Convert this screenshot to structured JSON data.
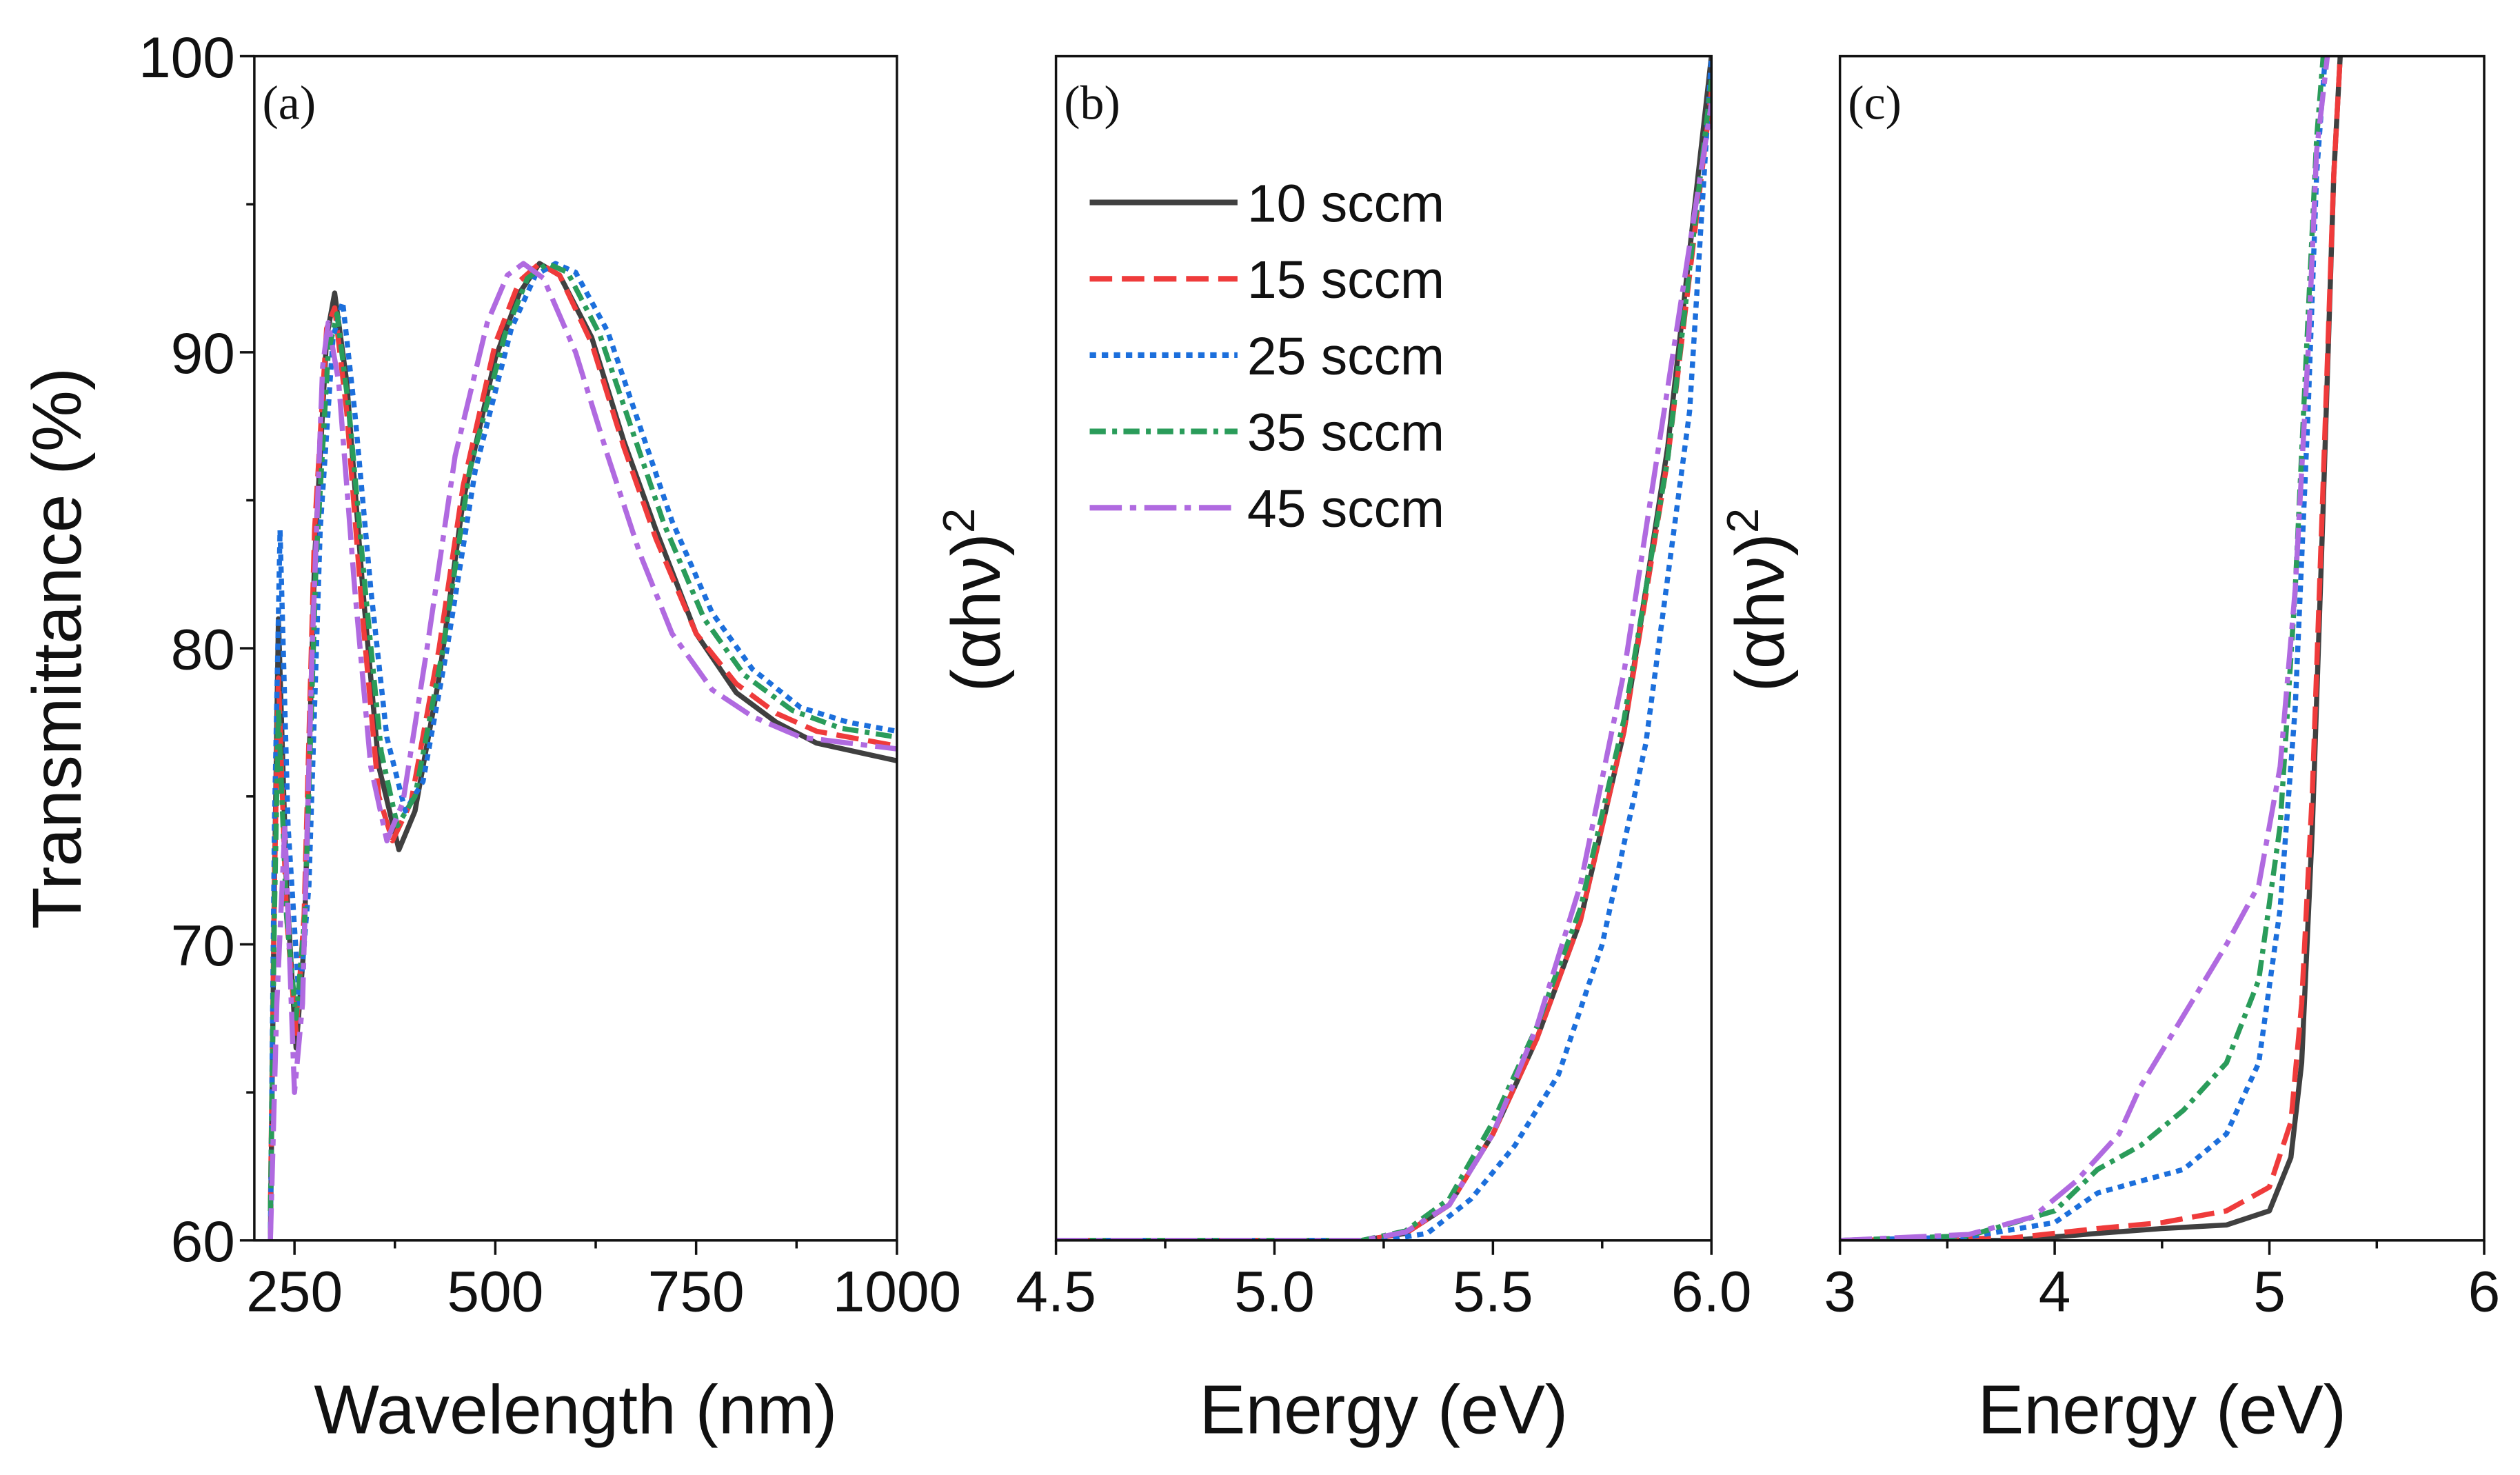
{
  "chart_data": [
    {
      "type": "line",
      "panel_label": "(a)",
      "xlabel": "Wavelength (nm)",
      "ylabel": "Transmittance (%)",
      "xlim": [
        200,
        1000
      ],
      "ylim": [
        60,
        100
      ],
      "xticks": [
        250,
        500,
        750,
        1000
      ],
      "yticks": [
        60,
        70,
        80,
        90,
        100
      ],
      "grid": false,
      "series": [
        {
          "name": "10 sccm",
          "points": [
            [
              220,
              60
            ],
            [
              225,
              72
            ],
            [
              230,
              81
            ],
            [
              240,
              72
            ],
            [
              252,
              66.5
            ],
            [
              262,
              70
            ],
            [
              275,
              83
            ],
            [
              290,
              90.5
            ],
            [
              300,
              92
            ],
            [
              315,
              89
            ],
            [
              335,
              82
            ],
            [
              355,
              76
            ],
            [
              380,
              73.2
            ],
            [
              400,
              74.5
            ],
            [
              430,
              79
            ],
            [
              460,
              85
            ],
            [
              500,
              89.8
            ],
            [
              530,
              92
            ],
            [
              555,
              93
            ],
            [
              580,
              92.6
            ],
            [
              620,
              90.5
            ],
            [
              660,
              87
            ],
            [
              700,
              84
            ],
            [
              750,
              80.5
            ],
            [
              800,
              78.5
            ],
            [
              850,
              77.5
            ],
            [
              900,
              76.8
            ],
            [
              1000,
              76.2
            ]
          ]
        },
        {
          "name": "15 sccm",
          "points": [
            [
              220,
              61
            ],
            [
              225,
              72
            ],
            [
              230,
              79
            ],
            [
              240,
              71
            ],
            [
              252,
              67
            ],
            [
              262,
              71
            ],
            [
              275,
              84
            ],
            [
              290,
              90.8
            ],
            [
              300,
              91.5
            ],
            [
              315,
              88
            ],
            [
              335,
              81
            ],
            [
              355,
              75
            ],
            [
              372,
              73.5
            ],
            [
              395,
              74.8
            ],
            [
              430,
              80
            ],
            [
              460,
              85.5
            ],
            [
              500,
              90.3
            ],
            [
              530,
              92.4
            ],
            [
              555,
              93
            ],
            [
              580,
              92.6
            ],
            [
              620,
              90.3
            ],
            [
              660,
              86.8
            ],
            [
              700,
              83.7
            ],
            [
              750,
              80.5
            ],
            [
              800,
              78.8
            ],
            [
              850,
              77.8
            ],
            [
              900,
              77.2
            ],
            [
              1000,
              76.7
            ]
          ]
        },
        {
          "name": "25 sccm",
          "points": [
            [
              220,
              60
            ],
            [
              225,
              74
            ],
            [
              232,
              84
            ],
            [
              242,
              74
            ],
            [
              256,
              68
            ],
            [
              268,
              72
            ],
            [
              282,
              84
            ],
            [
              298,
              90.5
            ],
            [
              310,
              91.7
            ],
            [
              325,
              88
            ],
            [
              345,
              82
            ],
            [
              365,
              77
            ],
            [
              388,
              74.5
            ],
            [
              410,
              75.5
            ],
            [
              440,
              80
            ],
            [
              475,
              86
            ],
            [
              520,
              90.8
            ],
            [
              550,
              92.6
            ],
            [
              575,
              93
            ],
            [
              600,
              92.7
            ],
            [
              640,
              90.7
            ],
            [
              680,
              87.5
            ],
            [
              720,
              84.3
            ],
            [
              770,
              81.2
            ],
            [
              820,
              79.3
            ],
            [
              880,
              78
            ],
            [
              940,
              77.5
            ],
            [
              1000,
              77.2
            ]
          ]
        },
        {
          "name": "35 sccm",
          "points": [
            [
              220,
              61
            ],
            [
              225,
              71
            ],
            [
              230,
              78
            ],
            [
              240,
              71
            ],
            [
              252,
              67.5
            ],
            [
              263,
              71
            ],
            [
              277,
              83
            ],
            [
              292,
              90
            ],
            [
              303,
              91.3
            ],
            [
              318,
              88
            ],
            [
              338,
              82
            ],
            [
              358,
              76.5
            ],
            [
              378,
              74
            ],
            [
              400,
              75
            ],
            [
              435,
              80
            ],
            [
              468,
              86
            ],
            [
              512,
              90.6
            ],
            [
              540,
              92.5
            ],
            [
              565,
              93
            ],
            [
              590,
              92.7
            ],
            [
              630,
              90.6
            ],
            [
              670,
              87.4
            ],
            [
              710,
              84.2
            ],
            [
              760,
              81
            ],
            [
              810,
              79.1
            ],
            [
              870,
              77.9
            ],
            [
              930,
              77.3
            ],
            [
              1000,
              77
            ]
          ]
        },
        {
          "name": "45 sccm",
          "points": [
            [
              220,
              60
            ],
            [
              228,
              68
            ],
            [
              238,
              74
            ],
            [
              250,
              65
            ],
            [
              260,
              68
            ],
            [
              272,
              80
            ],
            [
              285,
              89.5
            ],
            [
              292,
              91
            ],
            [
              305,
              89
            ],
            [
              325,
              82
            ],
            [
              345,
              76
            ],
            [
              365,
              73.5
            ],
            [
              385,
              74.8
            ],
            [
              415,
              80
            ],
            [
              450,
              86.5
            ],
            [
              490,
              91
            ],
            [
              515,
              92.6
            ],
            [
              535,
              93
            ],
            [
              560,
              92.5
            ],
            [
              600,
              90
            ],
            [
              640,
              86.5
            ],
            [
              680,
              83.2
            ],
            [
              720,
              80.5
            ],
            [
              770,
              78.6
            ],
            [
              820,
              77.7
            ],
            [
              880,
              77
            ],
            [
              1000,
              76.6
            ]
          ]
        }
      ]
    },
    {
      "type": "line",
      "panel_label": "(b)",
      "xlabel": "Energy (eV)",
      "ylabel": "(αhν)",
      "ylabel_superscript": "2",
      "xlim": [
        4.5,
        6.0
      ],
      "ylim": [
        0,
        1
      ],
      "xticks": [
        "4.5",
        "5.0",
        "5.5",
        "6.0"
      ],
      "grid": false,
      "legend": {
        "position": "top-left",
        "entries": [
          "10 sccm",
          "15 sccm",
          "25 sccm",
          "35 sccm",
          "45 sccm"
        ]
      },
      "series": [
        {
          "name": "10 sccm",
          "points": [
            [
              4.5,
              0
            ],
            [
              5.2,
              0
            ],
            [
              5.3,
              0.006
            ],
            [
              5.4,
              0.03
            ],
            [
              5.5,
              0.09
            ],
            [
              5.6,
              0.17
            ],
            [
              5.7,
              0.27
            ],
            [
              5.8,
              0.43
            ],
            [
              5.9,
              0.67
            ],
            [
              6.0,
              1.0
            ]
          ]
        },
        {
          "name": "15 sccm",
          "points": [
            [
              4.5,
              0
            ],
            [
              5.2,
              0
            ],
            [
              5.3,
              0.006
            ],
            [
              5.4,
              0.03
            ],
            [
              5.5,
              0.09
            ],
            [
              5.6,
              0.17
            ],
            [
              5.7,
              0.27
            ],
            [
              5.8,
              0.43
            ],
            [
              5.9,
              0.66
            ],
            [
              6.0,
              0.97
            ]
          ]
        },
        {
          "name": "25 sccm",
          "points": [
            [
              4.5,
              0
            ],
            [
              5.25,
              0
            ],
            [
              5.35,
              0.006
            ],
            [
              5.45,
              0.035
            ],
            [
              5.55,
              0.08
            ],
            [
              5.65,
              0.14
            ],
            [
              5.75,
              0.25
            ],
            [
              5.85,
              0.42
            ],
            [
              5.95,
              0.7
            ],
            [
              6.0,
              1.0
            ]
          ]
        },
        {
          "name": "35 sccm",
          "points": [
            [
              4.5,
              0
            ],
            [
              5.2,
              0
            ],
            [
              5.3,
              0.008
            ],
            [
              5.4,
              0.035
            ],
            [
              5.5,
              0.1
            ],
            [
              5.6,
              0.18
            ],
            [
              5.7,
              0.28
            ],
            [
              5.8,
              0.44
            ],
            [
              5.9,
              0.66
            ],
            [
              6.0,
              0.98
            ]
          ]
        },
        {
          "name": "45 sccm",
          "points": [
            [
              4.5,
              0
            ],
            [
              5.2,
              0
            ],
            [
              5.3,
              0.007
            ],
            [
              5.4,
              0.03
            ],
            [
              5.5,
              0.09
            ],
            [
              5.6,
              0.18
            ],
            [
              5.7,
              0.3
            ],
            [
              5.8,
              0.48
            ],
            [
              5.9,
              0.72
            ],
            [
              6.0,
              0.96
            ]
          ]
        }
      ]
    },
    {
      "type": "line",
      "panel_label": "(c)",
      "xlabel": "Energy (eV)",
      "ylabel": "(αhν)",
      "ylabel_superscript": "2",
      "xlim": [
        3,
        6
      ],
      "ylim": [
        0,
        1
      ],
      "xticks": [
        "3",
        "4",
        "5",
        "6"
      ],
      "grid": false,
      "series": [
        {
          "name": "10 sccm",
          "points": [
            [
              3,
              0
            ],
            [
              3.8,
              0
            ],
            [
              4.2,
              0.006
            ],
            [
              4.5,
              0.01
            ],
            [
              4.8,
              0.013
            ],
            [
              5.0,
              0.025
            ],
            [
              5.1,
              0.07
            ],
            [
              5.15,
              0.15
            ],
            [
              5.2,
              0.35
            ],
            [
              5.25,
              0.62
            ],
            [
              5.3,
              0.9
            ],
            [
              5.33,
              1.0
            ]
          ]
        },
        {
          "name": "15 sccm",
          "points": [
            [
              3,
              0
            ],
            [
              3.8,
              0.002
            ],
            [
              4.2,
              0.01
            ],
            [
              4.5,
              0.015
            ],
            [
              4.8,
              0.025
            ],
            [
              5.0,
              0.045
            ],
            [
              5.1,
              0.1
            ],
            [
              5.15,
              0.2
            ],
            [
              5.2,
              0.38
            ],
            [
              5.25,
              0.64
            ],
            [
              5.3,
              0.9
            ],
            [
              5.33,
              1.0
            ]
          ]
        },
        {
          "name": "25 sccm",
          "points": [
            [
              3,
              0
            ],
            [
              3.6,
              0.003
            ],
            [
              4.0,
              0.015
            ],
            [
              4.2,
              0.04
            ],
            [
              4.4,
              0.05
            ],
            [
              4.6,
              0.06
            ],
            [
              4.8,
              0.09
            ],
            [
              4.95,
              0.15
            ],
            [
              5.05,
              0.28
            ],
            [
              5.12,
              0.45
            ],
            [
              5.18,
              0.7
            ],
            [
              5.22,
              0.9
            ],
            [
              5.26,
              1.0
            ]
          ]
        },
        {
          "name": "35 sccm",
          "points": [
            [
              3,
              0
            ],
            [
              3.6,
              0.004
            ],
            [
              4.0,
              0.025
            ],
            [
              4.2,
              0.06
            ],
            [
              4.4,
              0.08
            ],
            [
              4.6,
              0.11
            ],
            [
              4.8,
              0.15
            ],
            [
              4.95,
              0.22
            ],
            [
              5.05,
              0.35
            ],
            [
              5.12,
              0.55
            ],
            [
              5.18,
              0.78
            ],
            [
              5.22,
              0.93
            ],
            [
              5.25,
              1.0
            ]
          ]
        },
        {
          "name": "45 sccm",
          "points": [
            [
              3,
              0
            ],
            [
              3.6,
              0.005
            ],
            [
              3.9,
              0.02
            ],
            [
              4.1,
              0.05
            ],
            [
              4.3,
              0.09
            ],
            [
              4.4,
              0.13
            ],
            [
              4.6,
              0.19
            ],
            [
              4.8,
              0.25
            ],
            [
              4.95,
              0.3
            ],
            [
              5.05,
              0.4
            ],
            [
              5.12,
              0.55
            ],
            [
              5.18,
              0.75
            ],
            [
              5.22,
              0.92
            ],
            [
              5.27,
              1.0
            ]
          ]
        }
      ]
    }
  ],
  "style": {
    "colors": {
      "10 sccm": "#404040",
      "15 sccm": "#ef3b3b",
      "25 sccm": "#1c6fdc",
      "35 sccm": "#2a9c5a",
      "45 sccm": "#b06ae0"
    },
    "dashes": {
      "10 sccm": "solid",
      "15 sccm": "dash",
      "25 sccm": "dot",
      "35 sccm": "dash-dot",
      "45 sccm": "long-dash-dot"
    }
  }
}
